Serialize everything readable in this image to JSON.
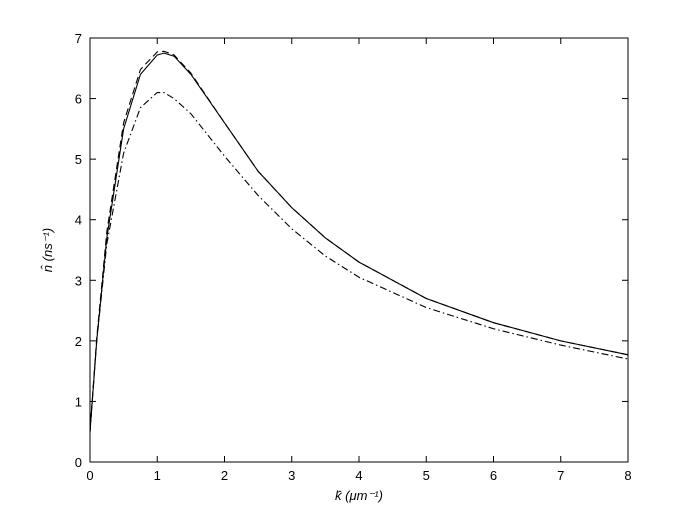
{
  "chart_data": {
    "type": "line",
    "xlabel": "k̂ (μm⁻¹)",
    "ylabel": "n̂ (ns⁻¹)",
    "x": [
      0,
      0.1,
      0.25,
      0.5,
      0.75,
      1,
      1.1,
      1.25,
      1.5,
      2,
      2.5,
      3,
      3.5,
      4,
      5,
      6,
      7,
      8
    ],
    "series": [
      {
        "color": "#000000",
        "dash": "solid",
        "values": [
          0.5,
          2.0,
          3.7,
          5.5,
          6.4,
          6.72,
          6.75,
          6.7,
          6.4,
          5.6,
          4.8,
          4.2,
          3.7,
          3.3,
          2.7,
          2.3,
          2.0,
          1.77
        ]
      },
      {
        "color": "#000000",
        "dash": "dashed",
        "values": [
          0.5,
          2.05,
          3.8,
          5.6,
          6.48,
          6.77,
          6.78,
          6.72,
          6.42,
          5.6,
          4.8,
          4.2,
          3.7,
          3.3,
          2.7,
          2.3,
          2.0,
          1.77
        ]
      },
      {
        "color": "#000000",
        "dash": "dashdot",
        "values": [
          0.5,
          2.0,
          3.6,
          5.1,
          5.85,
          6.1,
          6.1,
          6.0,
          5.75,
          5.05,
          4.4,
          3.85,
          3.4,
          3.05,
          2.55,
          2.2,
          1.93,
          1.7
        ]
      }
    ],
    "xlim": [
      0,
      8
    ],
    "ylim": [
      0,
      7
    ],
    "xticks": [
      0,
      1,
      2,
      3,
      4,
      5,
      6,
      7,
      8
    ],
    "yticks": [
      0,
      1,
      2,
      3,
      4,
      5,
      6,
      7
    ]
  }
}
